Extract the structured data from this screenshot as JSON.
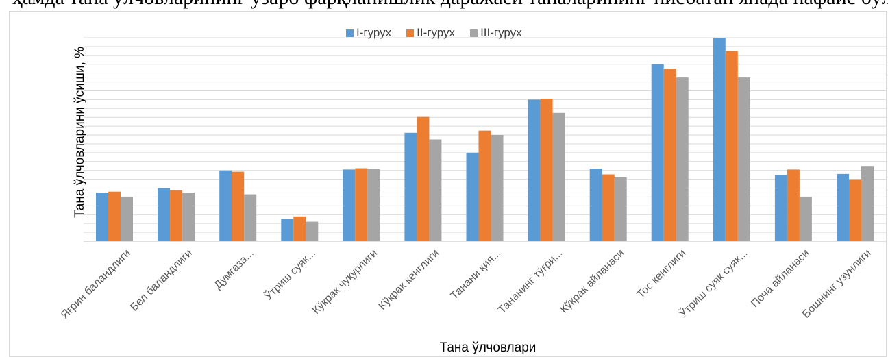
{
  "caption": "ҳамда тана ўлчовларининг ўзаро фарқланишлик даражаси таналарининг нисбатан янада нафаис бўлган.",
  "chart_data": {
    "type": "bar",
    "title": "",
    "xlabel": "Тана ўлчовлари",
    "ylabel": "Тана ўлчовларини ўсиши, %",
    "legend_position": "top",
    "grid": true,
    "ylim": [
      0,
      46
    ],
    "categories": [
      "Яғрин баландлиги",
      "Бел баландлиги",
      "Думғаза...",
      "Ўтриш суяк...",
      "Кўкрак чуқурлиги",
      "Кўкрак кенглиги",
      "Танани қия...",
      "Тананинг тўғри...",
      "Кўкрак айланаси",
      "Тос кенглиги",
      "Ўтриш суяк суяк...",
      "Поча айланаси",
      "Бошнинг узунлиги"
    ],
    "series": [
      {
        "name": "I-гурух",
        "color": "#5b9bd5",
        "values": [
          11,
          12,
          16,
          5,
          16.2,
          24.5,
          20,
          32,
          16.4,
          40,
          46,
          15,
          15.2
        ]
      },
      {
        "name": "II-гурух",
        "color": "#ed7d31",
        "values": [
          11.2,
          11.5,
          15.7,
          5.6,
          16.5,
          28.1,
          25,
          32.2,
          15.1,
          39,
          43,
          16.2,
          14
        ]
      },
      {
        "name": "III-гурух",
        "color": "#a5a5a5",
        "values": [
          10,
          11,
          10.6,
          4.4,
          16.3,
          23,
          24,
          29,
          14.4,
          37,
          37,
          10,
          17
        ]
      }
    ]
  }
}
